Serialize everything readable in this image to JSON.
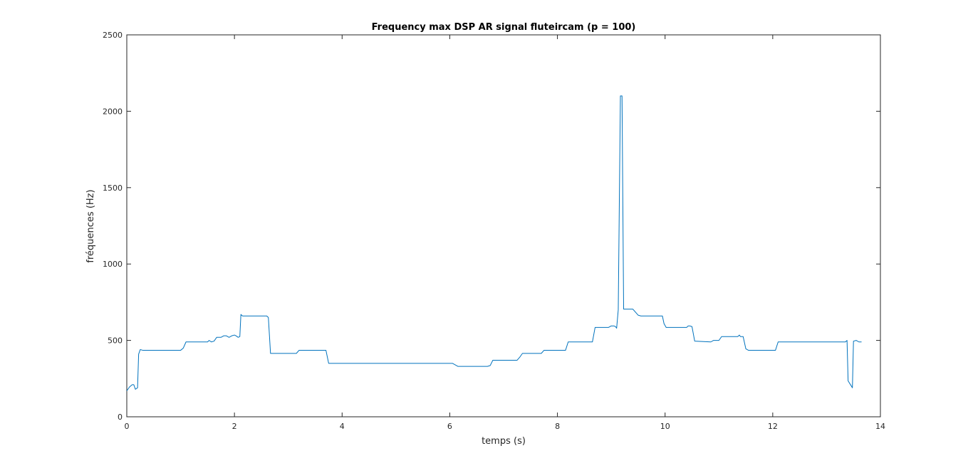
{
  "chart_data": {
    "type": "line",
    "title": "Frequency max DSP AR signal fluteircam (p = 100)",
    "xlabel": "temps (s)",
    "ylabel": "fréquences (Hz)",
    "xlim": [
      0,
      14
    ],
    "ylim": [
      0,
      2500
    ],
    "xticks": [
      "0",
      "2",
      "4",
      "6",
      "8",
      "10",
      "12",
      "14"
    ],
    "yticks": [
      "0",
      "500",
      "1000",
      "1500",
      "2000",
      "2500"
    ],
    "grid": false,
    "legend": "none",
    "series": [
      {
        "color": "#0072bd",
        "x": [
          0,
          0.05,
          0.1,
          0.13,
          0.16,
          0.18,
          0.2,
          0.22,
          0.25,
          0.3,
          0.35,
          1.0,
          1.05,
          1.1,
          1.5,
          1.53,
          1.57,
          1.62,
          1.67,
          1.75,
          1.8,
          1.85,
          1.9,
          1.95,
          2.0,
          2.03,
          2.07,
          2.1,
          2.12,
          2.15,
          2.2,
          2.6,
          2.63,
          2.67,
          3.15,
          3.2,
          3.7,
          3.75,
          6.05,
          6.15,
          6.7,
          6.75,
          6.8,
          7.25,
          7.3,
          7.35,
          7.7,
          7.75,
          8.15,
          8.2,
          8.65,
          8.7,
          8.95,
          9.0,
          9.05,
          9.08,
          9.1,
          9.13,
          9.17,
          9.2,
          9.23,
          9.3,
          9.4,
          9.5,
          9.55,
          9.95,
          9.98,
          10.02,
          10.4,
          10.43,
          10.46,
          10.5,
          10.55,
          10.85,
          10.9,
          11.0,
          11.05,
          11.35,
          11.38,
          11.4,
          11.45,
          11.5,
          11.55,
          12.0,
          12.05,
          12.1,
          13.35,
          13.38,
          13.4,
          13.48,
          13.5,
          13.55,
          13.6,
          13.65
        ],
        "y": [
          170,
          195,
          210,
          210,
          180,
          185,
          190,
          410,
          440,
          435,
          435,
          435,
          450,
          490,
          490,
          500,
          490,
          495,
          520,
          520,
          530,
          530,
          520,
          530,
          535,
          530,
          520,
          525,
          670,
          660,
          660,
          660,
          650,
          415,
          415,
          435,
          435,
          350,
          350,
          330,
          330,
          335,
          370,
          370,
          390,
          415,
          415,
          435,
          435,
          490,
          490,
          585,
          585,
          595,
          595,
          590,
          580,
          700,
          2100,
          2100,
          705,
          705,
          705,
          665,
          660,
          660,
          610,
          585,
          585,
          595,
          595,
          590,
          495,
          490,
          500,
          500,
          525,
          525,
          535,
          525,
          525,
          445,
          435,
          435,
          435,
          490,
          490,
          500,
          235,
          190,
          495,
          500,
          490,
          490
        ]
      }
    ]
  }
}
